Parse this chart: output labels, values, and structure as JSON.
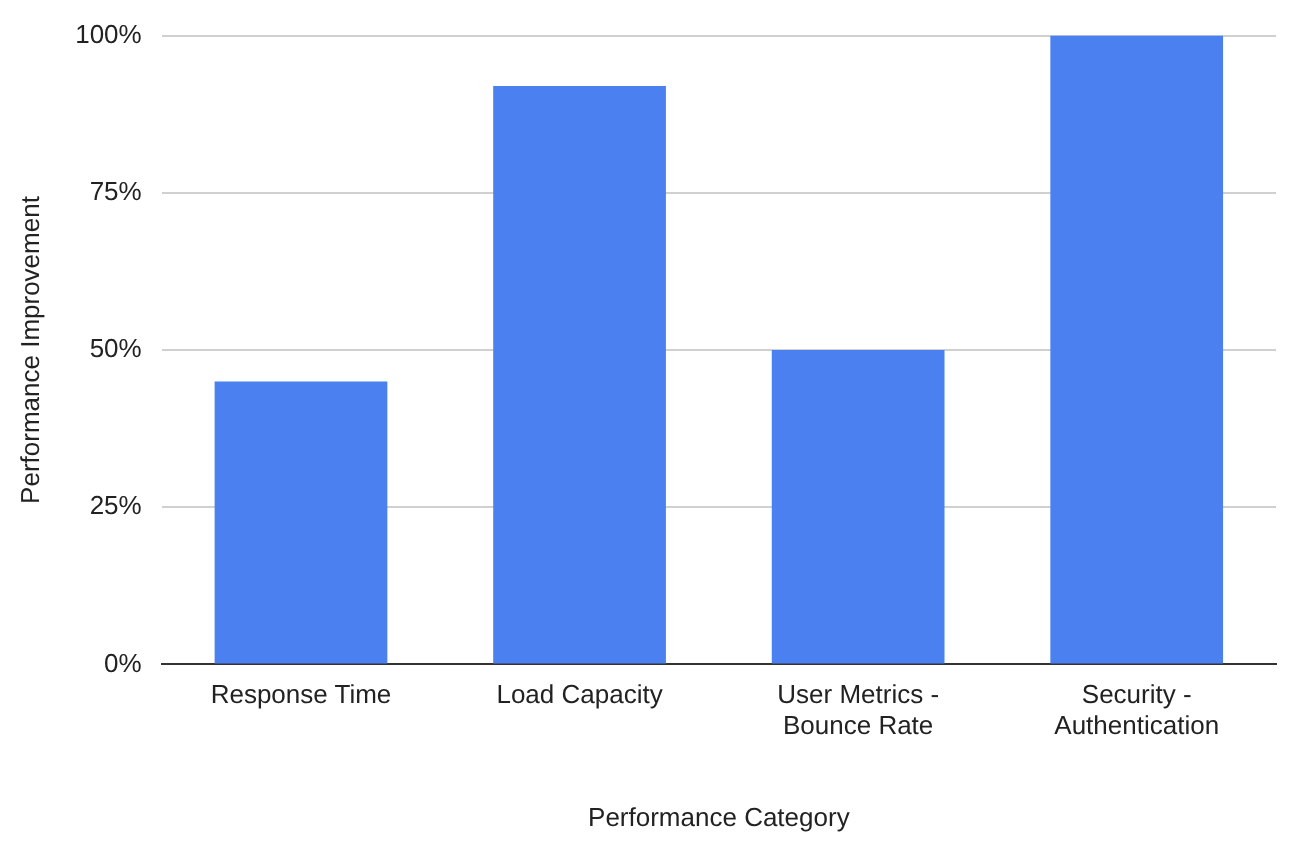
{
  "chart_data": {
    "type": "bar",
    "xlabel": "Performance Category",
    "ylabel": "Performance Improvement",
    "categories": [
      "Response Time",
      "Load Capacity",
      "User Metrics - Bounce Rate",
      "Security - Authentication"
    ],
    "values": [
      45,
      92,
      50,
      100
    ],
    "color": "#4a80f0",
    "ylim": [
      0,
      100
    ],
    "yticks": [
      {
        "value": 0,
        "label": "0%"
      },
      {
        "value": 25,
        "label": "25%"
      },
      {
        "value": 50,
        "label": "50%"
      },
      {
        "value": 75,
        "label": "75%"
      },
      {
        "value": 100,
        "label": "100%"
      }
    ],
    "grid": "y",
    "legend": false
  }
}
